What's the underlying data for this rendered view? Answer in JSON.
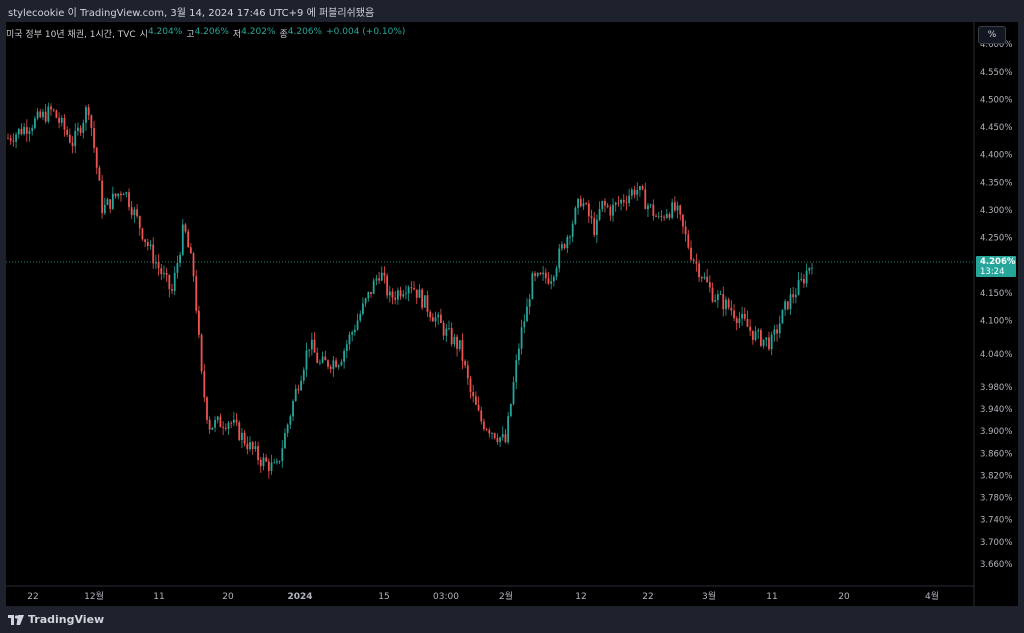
{
  "top_bar": {
    "text": "stylecookie 이 TradingView.com, 3월 14, 2024 17:46 UTC+9 에 퍼블리쉬됐음"
  },
  "legend": {
    "symbol": "미국 정부 10년 채권, 1시간, TVC",
    "o_label": "시",
    "o": "4.204%",
    "h_label": "고",
    "h": "4.206%",
    "l_label": "저",
    "l": "4.202%",
    "c_label": "종",
    "c": "4.206%",
    "change": "+0.004 (+0.10%)"
  },
  "unit_button": {
    "label": "%"
  },
  "footer": {
    "brand": "TradingView",
    "logo_icon": "tradingview-logo-icon"
  },
  "colors": {
    "up": "#26a69a",
    "down": "#ef5350",
    "last_line": "#26a69a",
    "bg": "#000000"
  },
  "chart_data": {
    "type": "candlestick",
    "unit": "%",
    "last_price": {
      "value": "4.206%",
      "countdown": "13:24",
      "y": 4.206
    },
    "ylim": [
      3.62,
      4.64
    ],
    "y_ticks": [
      {
        "v": 4.6,
        "label": "4.600%"
      },
      {
        "v": 4.55,
        "label": "4.550%"
      },
      {
        "v": 4.5,
        "label": "4.500%"
      },
      {
        "v": 4.45,
        "label": "4.450%"
      },
      {
        "v": 4.4,
        "label": "4.400%"
      },
      {
        "v": 4.35,
        "label": "4.350%"
      },
      {
        "v": 4.3,
        "label": "4.300%"
      },
      {
        "v": 4.25,
        "label": "4.250%"
      },
      {
        "v": 4.15,
        "label": "4.150%"
      },
      {
        "v": 4.1,
        "label": "4.100%"
      },
      {
        "v": 4.04,
        "label": "4.040%"
      },
      {
        "v": 3.98,
        "label": "3.980%"
      },
      {
        "v": 3.94,
        "label": "3.940%"
      },
      {
        "v": 3.9,
        "label": "3.900%"
      },
      {
        "v": 3.86,
        "label": "3.860%"
      },
      {
        "v": 3.82,
        "label": "3.820%"
      },
      {
        "v": 3.78,
        "label": "3.780%"
      },
      {
        "v": 3.74,
        "label": "3.740%"
      },
      {
        "v": 3.7,
        "label": "3.700%"
      },
      {
        "v": 3.66,
        "label": "3.660%"
      }
    ],
    "x_ticks": [
      "22",
      "12월",
      "11",
      "20",
      "2024",
      "15",
      "03:00",
      "2월",
      "12",
      "22",
      "3월",
      "11",
      "20",
      "4월"
    ],
    "x_tick_bold": [
      false,
      false,
      false,
      false,
      true,
      false,
      false,
      false,
      false,
      false,
      false,
      false,
      false,
      false
    ],
    "path_x": [
      0,
      0.044,
      0.065,
      0.08,
      0.094,
      0.115,
      0.143,
      0.163,
      0.175,
      0.185,
      0.193,
      0.2,
      0.22,
      0.25,
      0.267,
      0.286,
      0.3,
      0.31,
      0.33,
      0.36,
      0.37,
      0.38,
      0.4,
      0.415,
      0.435,
      0.45,
      0.46,
      0.47,
      0.495,
      0.508,
      0.512,
      0.518,
      0.52,
      0.54,
      0.56,
      0.57,
      0.585,
      0.59,
      0.6,
      0.625,
      0.648,
      0.655,
      0.665,
      0.68,
      0.7,
      0.72,
      0.73,
      0.745,
      0.76,
      0.775,
      0.79,
      0.8
    ],
    "path_y": [
      4.43,
      4.48,
      4.42,
      4.49,
      4.3,
      4.34,
      4.22,
      4.15,
      4.27,
      4.18,
      3.99,
      3.91,
      3.92,
      3.85,
      3.83,
      3.97,
      4.06,
      4.02,
      4.03,
      4.15,
      4.19,
      4.14,
      4.17,
      4.13,
      4.08,
      4.05,
      3.97,
      3.92,
      3.88,
      4.05,
      4.09,
      4.13,
      4.17,
      4.18,
      4.27,
      4.32,
      4.26,
      4.31,
      4.3,
      4.34,
      4.28,
      4.3,
      4.3,
      4.22,
      4.15,
      4.12,
      4.1,
      4.07,
      4.06,
      4.13,
      4.17,
      4.21
    ],
    "candle_count": 300,
    "x_range_fraction": [
      0,
      0.8
    ]
  }
}
